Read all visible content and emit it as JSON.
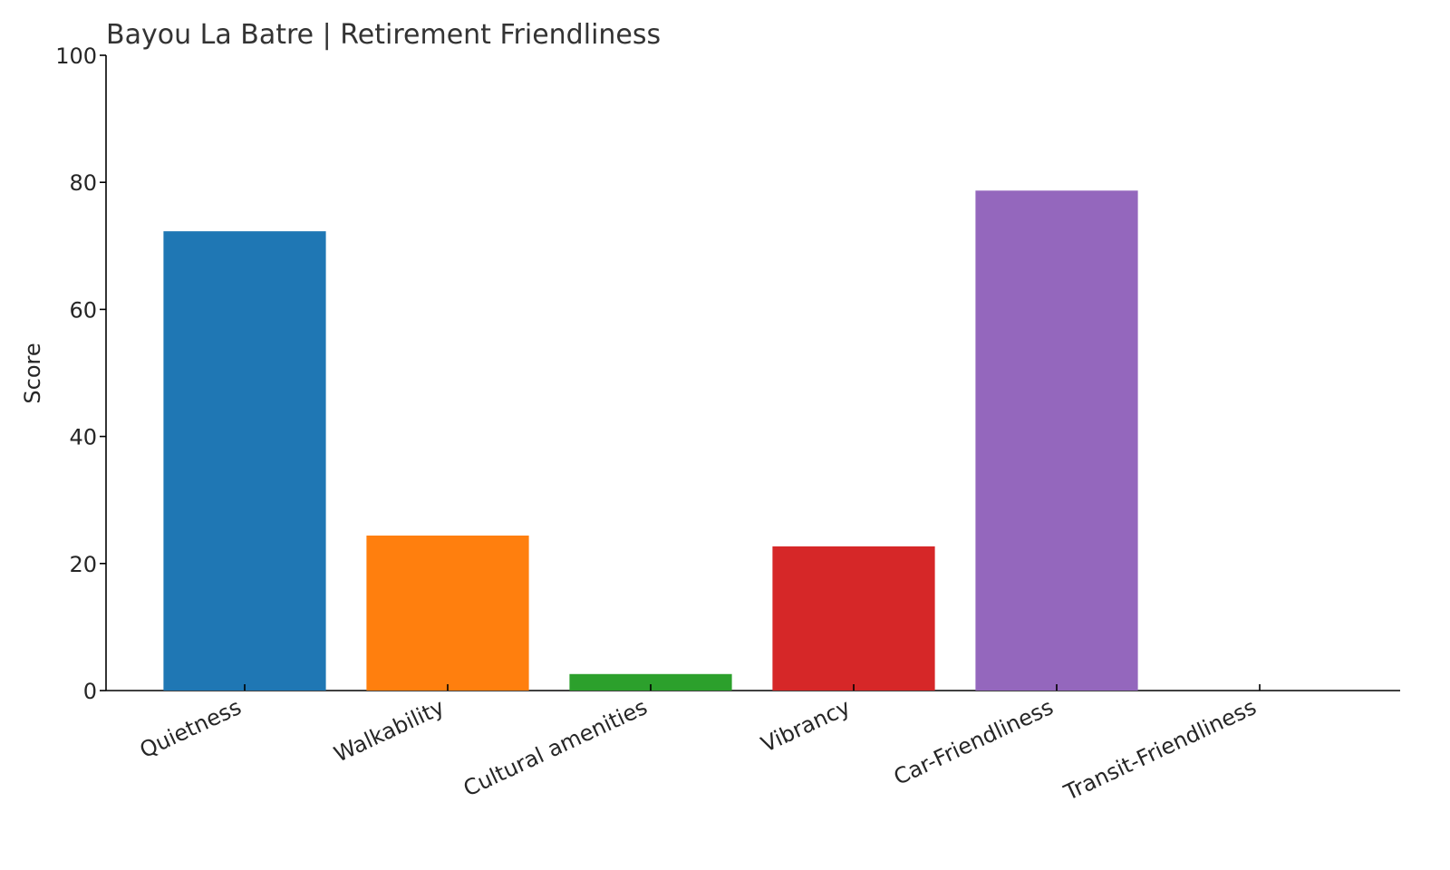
{
  "chart_data": {
    "type": "bar",
    "title": "Bayou La Batre | Retirement Friendliness",
    "y_label": "Score",
    "categories": [
      "Quietness",
      "Walkability",
      "Cultural amenities",
      "Vibrancy",
      "Car-Friendliness",
      "Transit-Friendliness"
    ],
    "values": [
      72.3,
      24.4,
      2.6,
      22.7,
      78.7,
      0
    ],
    "colors": [
      "#1f77b4",
      "#ff7f0e",
      "#2ca02c",
      "#d62728",
      "#9467bd",
      "#8c564b"
    ],
    "ylim": [
      0,
      100
    ],
    "yticks": [
      0,
      20,
      40,
      60,
      80,
      100
    ],
    "grid": false
  }
}
